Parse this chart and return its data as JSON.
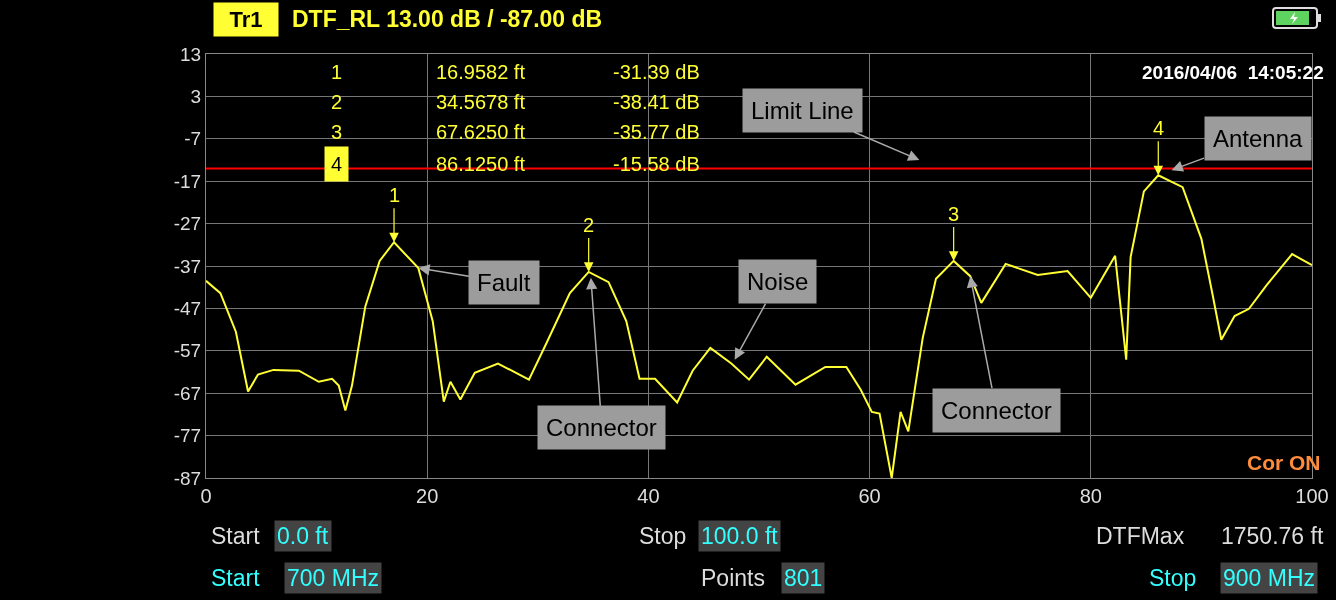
{
  "chart_data": {
    "type": "line",
    "title": "DTF_RL 13.00 dB / -87.00 dB",
    "subtitle": "Tr1",
    "x": [
      0,
      1.3,
      2.7,
      3.8,
      4.7,
      6.1,
      8.4,
      10.2,
      11.4,
      12.0,
      12.6,
      13.2,
      14.4,
      15.7,
      17.0,
      19.2,
      20.5,
      21.5,
      22.1,
      23.0,
      24.3,
      26.4,
      29.2,
      30.8,
      32.9,
      34.6,
      36.4,
      38.0,
      39.2,
      40.6,
      42.6,
      44.0,
      45.6,
      47.5,
      49.1,
      50.7,
      53.3,
      56.0,
      57.9,
      59.2,
      60.2,
      60.9,
      62.0,
      62.8,
      63.5,
      64.8,
      66.0,
      67.6,
      69.1,
      70.1,
      72.3,
      75.2,
      77.9,
      80.0,
      82.2,
      83.2,
      83.6,
      84.8,
      86.1,
      88.3,
      90.0,
      91.0,
      91.8,
      93.0,
      94.3,
      95.9,
      98.2,
      100
    ],
    "series": [
      {
        "color": "#ffff33",
        "values": [
          -40.5,
          -43.4,
          -52.5,
          -66.6,
          -62.6,
          -61.5,
          -61.7,
          -64.3,
          -63.6,
          -65.2,
          -71.1,
          -65.2,
          -46.6,
          -35.8,
          -31.4,
          -37.5,
          -50,
          -69,
          -64.3,
          -68.5,
          -62.2,
          -60,
          -63.8,
          -55.1,
          -43.4,
          -38.4,
          -40.8,
          -50,
          -63.6,
          -63.6,
          -69.2,
          -61.7,
          -56.3,
          -60,
          -63.8,
          -58.4,
          -65,
          -60.8,
          -60.8,
          -66.2,
          -71.4,
          -71.8,
          -87,
          -71.4,
          -76,
          -54,
          -40,
          -35.8,
          -39.4,
          -45.7,
          -36.5,
          -39.1,
          -38.2,
          -44.5,
          -34.6,
          -59.1,
          -34.9,
          -19.4,
          -15.6,
          -18.4,
          -30.6,
          -43.6,
          -54.4,
          -48.8,
          -47.1,
          -41.5,
          -34.2,
          -36.8
        ]
      }
    ],
    "xlim": [
      0,
      100
    ],
    "xticks": [
      0,
      20,
      40,
      60,
      80,
      100
    ],
    "ylim": [
      -87,
      13
    ],
    "yticks": [
      13,
      3,
      -7,
      -17,
      -27,
      -37,
      -47,
      -57,
      -67,
      -77,
      -87
    ],
    "grid": true,
    "ref_lines": [
      {
        "axis": "y",
        "value": -14,
        "label": "Limit Line",
        "color": "#ff0000"
      }
    ],
    "annotations": [
      {
        "text": "1",
        "x": 17.0,
        "y": -31.4
      },
      {
        "text": "2",
        "x": 34.6,
        "y": -38.4
      },
      {
        "text": "3",
        "x": 67.6,
        "y": -35.8
      },
      {
        "text": "4",
        "x": 86.1,
        "y": -15.6
      },
      {
        "text": "Fault",
        "x": 19.2,
        "y": -37.5
      },
      {
        "text": "Connector",
        "x": 34.8,
        "y": -39.8
      },
      {
        "text": "Noise",
        "x": 47.8,
        "y": -59.1
      },
      {
        "text": "Connector",
        "x": 69.1,
        "y": -39.4
      },
      {
        "text": "Antenna",
        "x": 87.3,
        "y": -14.4
      },
      "1",
      "16.9582 ft",
      "-31.39 dB",
      "2",
      "34.5678 ft",
      "-38.41 dB",
      "3",
      "67.6250 ft",
      "-35.77 dB",
      "4",
      "86.1250 ft",
      "-15.58 dB",
      "2016/04/06  14:05:22",
      "Cor ON",
      "Start",
      "0.0 ft",
      "Stop",
      "100.0 ft",
      "DTFMax",
      "1750.76 ft",
      "Start",
      "700 MHz",
      "Points",
      "801",
      "Stop",
      "900 MHz"
    ]
  }
}
